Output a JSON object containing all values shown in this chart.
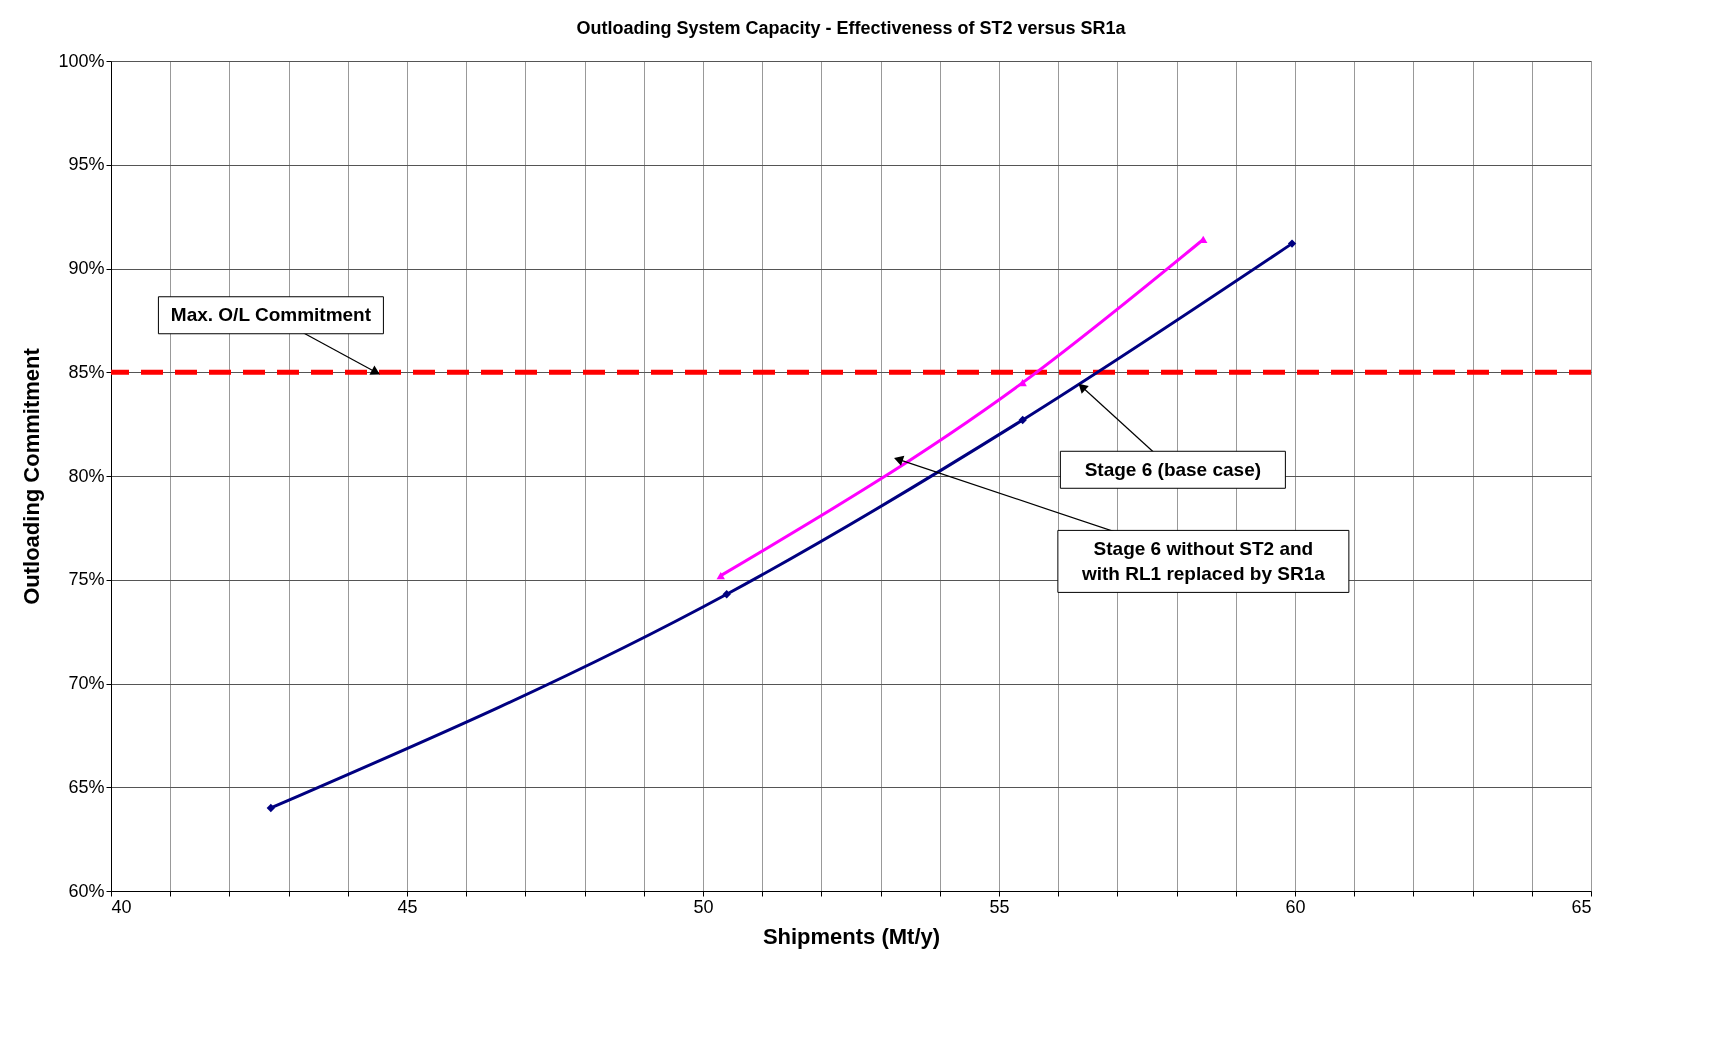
{
  "chart_data": {
    "type": "line",
    "title": "Outloading System Capacity - Effectiveness of ST2 versus SR1a",
    "xlabel": "Shipments (Mt/y)",
    "ylabel": "Outloading Commitment",
    "series": [
      {
        "color": "#000080",
        "marker": "diamond",
        "x": [
          42.7,
          50.4,
          55.4,
          59.95
        ],
        "values": [
          64.0,
          74.3,
          82.7,
          91.2
        ]
      },
      {
        "color": "#ff00ff",
        "marker": "triangle",
        "x": [
          50.3,
          55.4,
          58.45
        ],
        "values": [
          75.2,
          84.5,
          91.4
        ]
      }
    ],
    "xlim": [
      40,
      65
    ],
    "xticks": [
      40,
      {
        "value": 41,
        "label": null
      },
      {
        "value": 42,
        "label": null
      },
      {
        "value": 43,
        "label": null
      },
      {
        "value": 44,
        "label": null
      },
      45,
      {
        "value": 46,
        "label": null
      },
      {
        "value": 47,
        "label": null
      },
      {
        "value": 48,
        "label": null
      },
      {
        "value": 49,
        "label": null
      },
      50,
      {
        "value": 51,
        "label": null
      },
      {
        "value": 52,
        "label": null
      },
      {
        "value": 53,
        "label": null
      },
      {
        "value": 54,
        "label": null
      },
      55,
      {
        "value": 56,
        "label": null
      },
      {
        "value": 57,
        "label": null
      },
      {
        "value": 58,
        "label": null
      },
      {
        "value": 59,
        "label": null
      },
      60,
      {
        "value": 61,
        "label": null
      },
      {
        "value": 62,
        "label": null
      },
      {
        "value": 63,
        "label": null
      },
      {
        "value": 64,
        "label": null
      },
      65
    ],
    "ylim": [
      60,
      100
    ],
    "yticks": [
      {
        "value": 60,
        "label": "60%"
      },
      {
        "value": 65,
        "label": "65%"
      },
      {
        "value": 70,
        "label": "70%"
      },
      {
        "value": 75,
        "label": "75%"
      },
      {
        "value": 80,
        "label": "80%"
      },
      {
        "value": 85,
        "label": "85%"
      },
      {
        "value": 90,
        "label": "90%"
      },
      {
        "value": 95,
        "label": "95%"
      },
      {
        "value": 100,
        "label": "100%"
      }
    ],
    "grid": true,
    "line_style": "solid",
    "ref_lines": [
      {
        "axis": "y",
        "value": 85,
        "label": "Max. O/L Commitment",
        "color": "#ff0000",
        "line_style": "dashed"
      }
    ],
    "annotations": [
      {
        "text": "Stage 6 (base case)",
        "x": 56.4,
        "y": 84.3
      },
      {
        "text": "Stage 6 without ST2 and\nwith RL1 replaced by SR1a",
        "x": 53.3,
        "y": 80.8
      }
    ]
  }
}
